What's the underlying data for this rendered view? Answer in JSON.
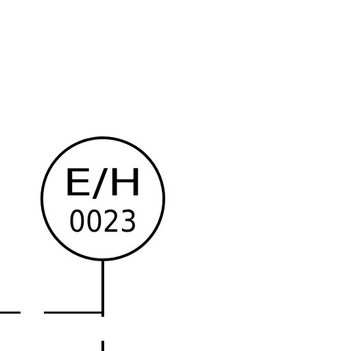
{
  "instrument_tag": {
    "function_letters": "E/H",
    "loop_number": "0023",
    "shape": "circle"
  },
  "colors": {
    "line": "#000000",
    "background": "#ffffff"
  }
}
